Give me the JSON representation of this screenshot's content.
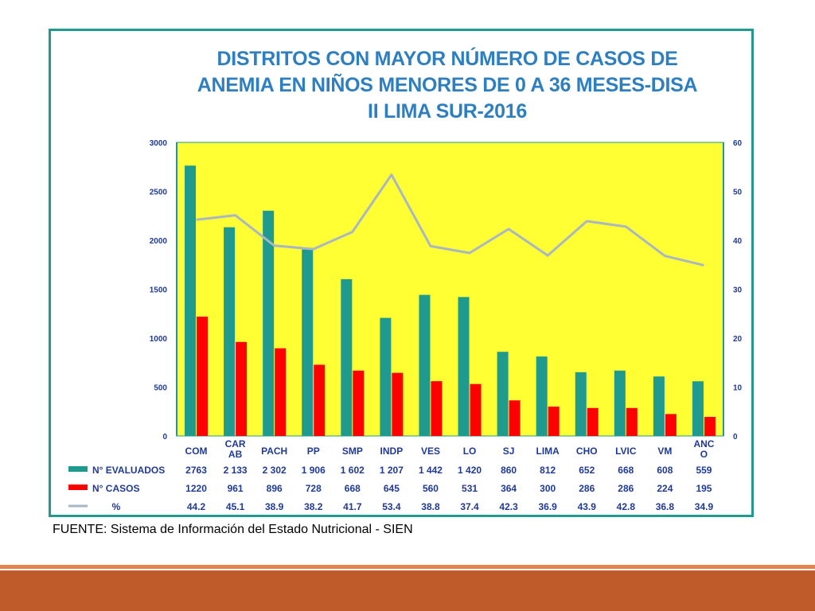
{
  "slide": {
    "title_lines": [
      "DISTRITOS CON MAYOR NÚMERO DE CASOS DE",
      "ANEMIA EN NIÑOS MENORES DE 0 A 36 MESES-DISA",
      "II LIMA SUR-2016"
    ],
    "source": "FUENTE: Sistema de Información del Estado Nutricional - SIEN",
    "colors": {
      "frame": "#1e9a8f",
      "plot_bg": "#ffff33",
      "title": "#2e7fc0",
      "bottom_bar": "#bf5a2b",
      "bottom_line": "#e5834a"
    }
  },
  "chart_data": {
    "type": "bar",
    "title": "DISTRITOS CON MAYOR NÚMERO DE CASOS DE ANEMIA EN NIÑOS MENORES DE 0 A 36 MESES-DISA II LIMA SUR-2016",
    "categories": [
      "COM",
      "CAR\nAB",
      "PACH",
      "PP",
      "SMP",
      "INDP",
      "VES",
      "LO",
      "SJ",
      "LIMA",
      "CHO",
      "LVIC",
      "VM",
      "ANC\nO"
    ],
    "y_left": {
      "min": 0,
      "max": 3000,
      "ticks": [
        "0",
        "500",
        "1000",
        "1500",
        "2000",
        "2500",
        "3000"
      ]
    },
    "y_right": {
      "min": 0,
      "max": 60,
      "ticks": [
        "0",
        "10",
        "20",
        "30",
        "40",
        "50",
        "60"
      ]
    },
    "series": [
      {
        "name": "N° EVALUADOS",
        "type": "bar",
        "axis": "left",
        "color": "#1e9a8f",
        "values": [
          2763,
          2133,
          2302,
          1906,
          1602,
          1207,
          1442,
          1420,
          860,
          812,
          652,
          668,
          608,
          559
        ],
        "labels": [
          "2763",
          "2 133",
          "2 302",
          "1 906",
          "1 602",
          "1 207",
          "1 442",
          "1 420",
          "860",
          "812",
          "652",
          "668",
          "608",
          "559"
        ]
      },
      {
        "name": "N° CASOS",
        "type": "bar",
        "axis": "left",
        "color": "#ff0000",
        "values": [
          1220,
          961,
          896,
          728,
          668,
          645,
          560,
          531,
          364,
          300,
          286,
          286,
          224,
          195
        ],
        "labels": [
          "1220",
          "961",
          "896",
          "728",
          "668",
          "645",
          "560",
          "531",
          "364",
          "300",
          "286",
          "286",
          "224",
          "195"
        ]
      },
      {
        "name": "%",
        "type": "line",
        "axis": "right",
        "color": "#a9b6c6",
        "values": [
          44.2,
          45.1,
          38.9,
          38.2,
          41.7,
          53.4,
          38.8,
          37.4,
          42.3,
          36.9,
          43.9,
          42.8,
          36.8,
          34.9
        ],
        "labels": [
          "44.2",
          "45.1",
          "38.9",
          "38.2",
          "41.7",
          "53.4",
          "38.8",
          "37.4",
          "42.3",
          "36.9",
          "43.9",
          "42.8",
          "36.8",
          "34.9"
        ]
      }
    ],
    "legend": "data-table-below"
  }
}
